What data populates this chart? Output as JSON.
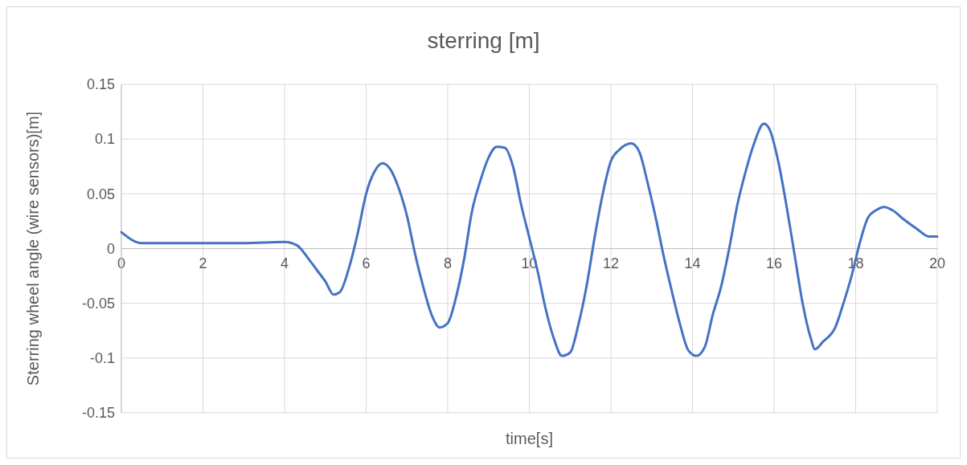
{
  "chart_data": {
    "type": "line",
    "title": "sterring [m]",
    "xlabel": "time[s]",
    "ylabel": "Sterring wheel angle (wire sensors)[m]",
    "xlim": [
      0,
      20
    ],
    "xticks": [
      0,
      2,
      4,
      6,
      8,
      10,
      12,
      14,
      16,
      18,
      20
    ],
    "ylim": [
      -0.15,
      0.15
    ],
    "yticks": [
      -0.15,
      -0.1,
      -0.05,
      0,
      0.05,
      0.1,
      0.15
    ],
    "grid": true,
    "marker": "none",
    "line_style": "solid",
    "series": [
      {
        "color": "#4472c4",
        "x": [
          0,
          0.5,
          1,
          2,
          3,
          4,
          4.3,
          4.6,
          4.8,
          5,
          5.2,
          5.35,
          5.6,
          5.8,
          6,
          6.2,
          6.4,
          6.6,
          6.8,
          7,
          7.2,
          7.4,
          7.6,
          7.8,
          8,
          8.2,
          8.4,
          8.6,
          8.8,
          9,
          9.2,
          9.4,
          9.6,
          9.8,
          10,
          10.2,
          10.4,
          10.6,
          10.8,
          11,
          11.2,
          11.4,
          11.6,
          11.8,
          12,
          12.2,
          12.5,
          12.7,
          12.9,
          13.1,
          13.3,
          13.5,
          13.7,
          13.9,
          14.1,
          14.3,
          14.5,
          14.7,
          14.9,
          15.1,
          15.3,
          15.5,
          15.75,
          15.9,
          16.1,
          16.3,
          16.5,
          16.7,
          16.9,
          17,
          17.2,
          17.5,
          17.7,
          17.9,
          18.1,
          18.3,
          18.5,
          18.7,
          18.9,
          19.2,
          19.5,
          19.8,
          20
        ],
        "values": [
          0.015,
          0.005,
          0.005,
          0.005,
          0.005,
          0.006,
          0.003,
          -0.01,
          -0.02,
          -0.03,
          -0.042,
          -0.04,
          -0.015,
          0.015,
          0.05,
          0.07,
          0.078,
          0.072,
          0.055,
          0.03,
          -0.005,
          -0.035,
          -0.06,
          -0.072,
          -0.068,
          -0.045,
          -0.01,
          0.035,
          0.062,
          0.083,
          0.093,
          0.092,
          0.075,
          0.04,
          0.01,
          -0.02,
          -0.055,
          -0.082,
          -0.098,
          -0.095,
          -0.07,
          -0.035,
          0.01,
          0.05,
          0.08,
          0.09,
          0.096,
          0.088,
          0.06,
          0.028,
          -0.008,
          -0.04,
          -0.07,
          -0.093,
          -0.098,
          -0.09,
          -0.06,
          -0.035,
          0,
          0.04,
          0.07,
          0.095,
          0.114,
          0.108,
          0.08,
          0.04,
          -0.005,
          -0.05,
          -0.082,
          -0.092,
          -0.085,
          -0.072,
          -0.05,
          -0.025,
          0.005,
          0.028,
          0.035,
          0.038,
          0.035,
          0.026,
          0.018,
          0.011,
          0.011
        ]
      }
    ]
  }
}
